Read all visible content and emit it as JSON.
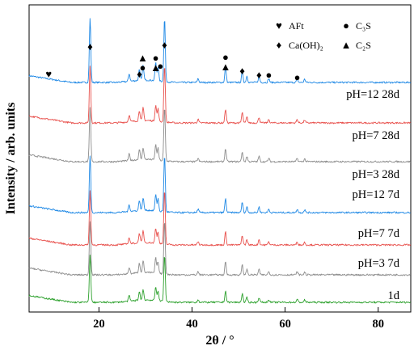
{
  "chart_data": {
    "type": "line",
    "title": "",
    "xlabel": "2θ / °",
    "ylabel": "Intensity / arb. units",
    "xlim": [
      5,
      87
    ],
    "xticks": [
      20,
      40,
      60,
      80
    ],
    "tick_labels": [
      "20",
      "40",
      "60",
      "80"
    ],
    "yticks_shown": false,
    "grid": false,
    "legend_position": "top-right",
    "legend": [
      {
        "symbol": "♥",
        "label": "AFt"
      },
      {
        "symbol": "●",
        "label": "C₃S"
      },
      {
        "symbol": "♦",
        "label": "Ca(OH)₂"
      },
      {
        "symbol": "▲",
        "label": "C₂S"
      }
    ],
    "peaks": [
      {
        "two_theta": 18.1,
        "height": 1.0
      },
      {
        "two_theta": 26.5,
        "height": 0.12
      },
      {
        "two_theta": 28.7,
        "height": 0.18
      },
      {
        "two_theta": 29.5,
        "height": 0.22
      },
      {
        "two_theta": 32.2,
        "height": 0.28
      },
      {
        "two_theta": 32.7,
        "height": 0.22
      },
      {
        "two_theta": 34.1,
        "height": 1.0
      },
      {
        "two_theta": 41.3,
        "height": 0.06
      },
      {
        "two_theta": 47.2,
        "height": 0.24
      },
      {
        "two_theta": 50.8,
        "height": 0.18
      },
      {
        "two_theta": 51.8,
        "height": 0.1
      },
      {
        "two_theta": 54.4,
        "height": 0.1
      },
      {
        "two_theta": 56.5,
        "height": 0.06
      },
      {
        "two_theta": 62.6,
        "height": 0.06
      },
      {
        "two_theta": 64.2,
        "height": 0.05
      }
    ],
    "series": [
      {
        "name": "pH=12  28d",
        "color": "#1e88e5",
        "peak_scale": 0.95
      },
      {
        "name": "pH=7  28d",
        "color": "#e8504c",
        "peak_scale": 0.85
      },
      {
        "name": "pH=3  28d",
        "color": "#8c8c8c",
        "peak_scale": 0.8
      },
      {
        "name": "pH=12  7d",
        "color": "#1e88e5",
        "peak_scale": 0.85
      },
      {
        "name": "pH=7  7d",
        "color": "#e8504c",
        "peak_scale": 0.8
      },
      {
        "name": "pH=3  7d",
        "color": "#8c8c8c",
        "peak_scale": 0.8
      },
      {
        "name": "1d",
        "color": "#2ca02c",
        "peak_scale": 0.7
      }
    ],
    "phase_markers": [
      {
        "symbol": "♥",
        "two_theta": 9.2
      },
      {
        "symbol": "♦",
        "two_theta": 18.1
      },
      {
        "symbol": "♦",
        "two_theta": 28.7
      },
      {
        "symbol": "●",
        "two_theta": 29.4
      },
      {
        "symbol": "▲",
        "two_theta": 29.4
      },
      {
        "symbol": "▲",
        "two_theta": 32.2
      },
      {
        "symbol": "●",
        "two_theta": 32.2
      },
      {
        "symbol": "●",
        "two_theta": 33.2
      },
      {
        "symbol": "♦",
        "two_theta": 34.1
      },
      {
        "symbol": "▲",
        "two_theta": 47.2
      },
      {
        "symbol": "●",
        "two_theta": 47.2
      },
      {
        "symbol": "♦",
        "two_theta": 50.8
      },
      {
        "symbol": "♦",
        "two_theta": 54.4
      },
      {
        "symbol": "●",
        "two_theta": 56.5
      },
      {
        "symbol": "●",
        "two_theta": 62.6
      }
    ]
  }
}
